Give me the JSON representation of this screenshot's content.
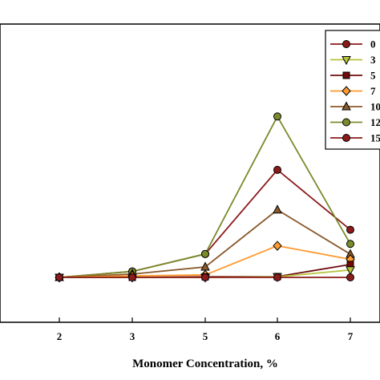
{
  "chart_data": {
    "type": "line",
    "title": "",
    "xlabel": "Monomer Concentration, %",
    "ylabel": "",
    "categories": [
      "2",
      "3",
      "5",
      "6",
      "7"
    ],
    "legend_placement": "top-right",
    "grid": false,
    "y_scale": {
      "min": 0,
      "max": 100
    },
    "series": [
      {
        "name": "0",
        "color": "#8b1a1a",
        "marker": "circle",
        "values": [
          0,
          0,
          0,
          0,
          0
        ]
      },
      {
        "name": "3",
        "color": "#b5c23a",
        "marker": "triangle-down",
        "values": [
          0,
          0,
          0,
          0.3,
          3.6
        ]
      },
      {
        "name": "5",
        "color": "#6e0b0b",
        "marker": "square",
        "values": [
          0,
          0,
          0.3,
          0.4,
          6.3
        ]
      },
      {
        "name": "7",
        "color": "#ff9a2e",
        "marker": "diamond",
        "values": [
          0,
          0.7,
          1.2,
          15.4,
          8.8
        ]
      },
      {
        "name": "10",
        "color": "#8b5a2b",
        "marker": "triangle-up",
        "values": [
          0,
          1.6,
          5.1,
          32.9,
          11.3
        ]
      },
      {
        "name": "12",
        "color": "#7a8b2b",
        "marker": "circle",
        "values": [
          0,
          2.9,
          11.4,
          78.4,
          16.3
        ]
      },
      {
        "name": "15",
        "color": "#8b1a1a",
        "marker": "circle",
        "values": [
          0,
          2.9,
          11.4,
          52.4,
          23.2
        ]
      }
    ]
  }
}
